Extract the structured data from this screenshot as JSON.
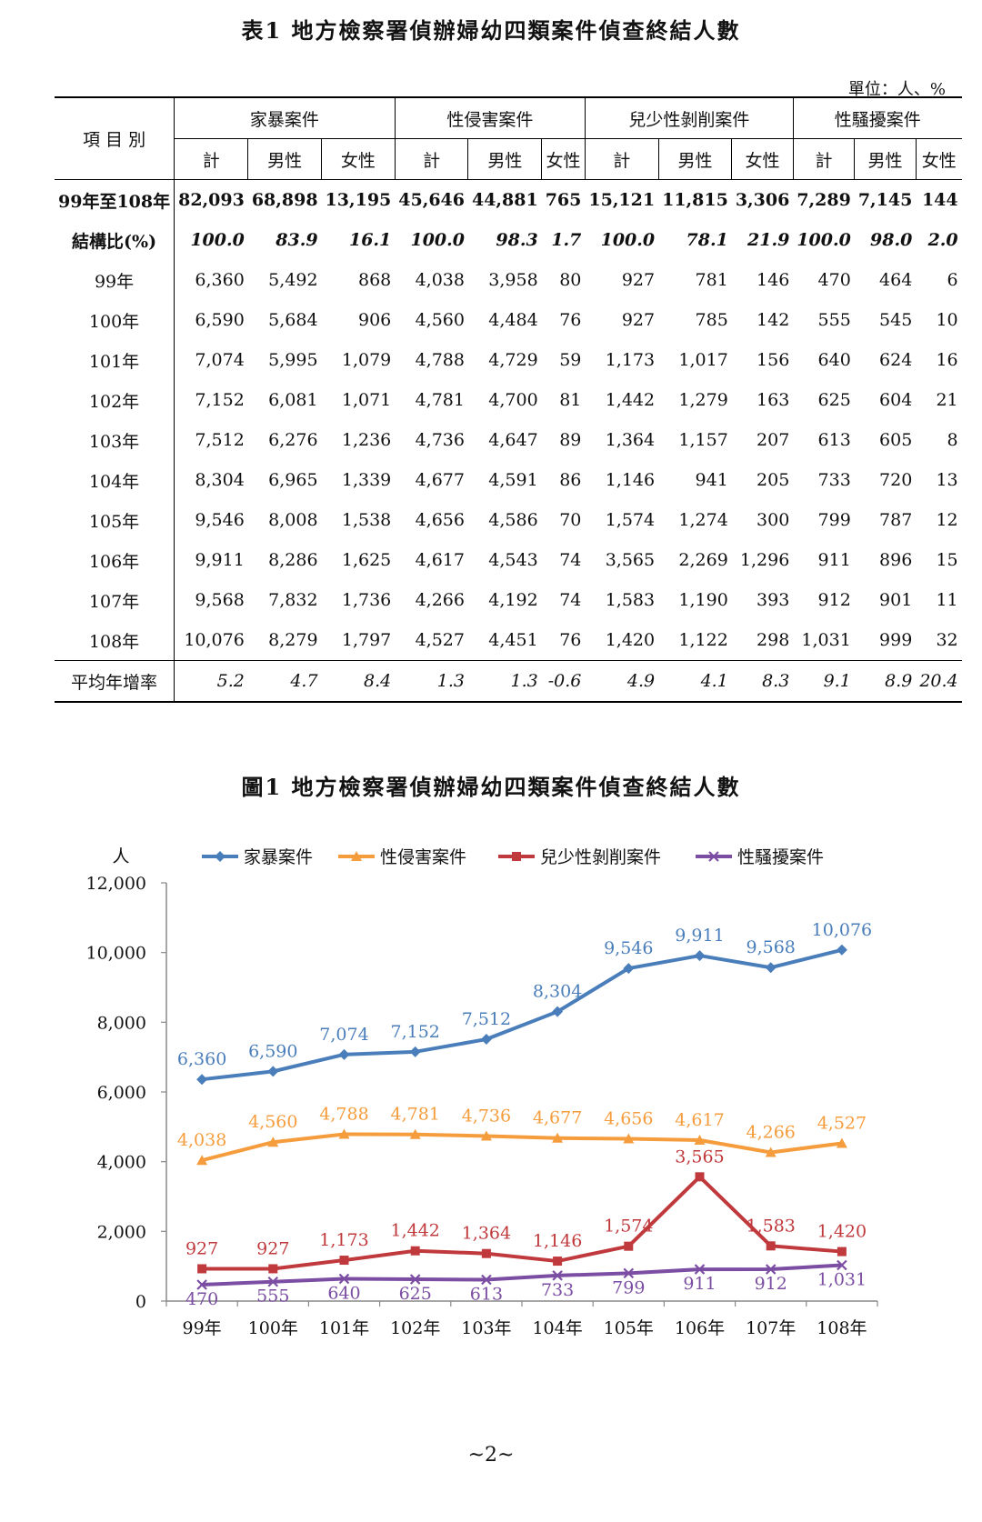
{
  "table": {
    "title": "表1 地方檢察署偵辦婦幼四類案件偵查終結人數",
    "unit": "單位：人、%",
    "row_header": "項 目 別",
    "groups": [
      "家暴案件",
      "性侵害案件",
      "兒少性剝削案件",
      "性騷擾案件"
    ],
    "subheaders": [
      "計",
      "男性",
      "女性",
      "計",
      "男性",
      "女性",
      "計",
      "男性",
      "女性",
      "計",
      "男性",
      "女性"
    ],
    "rows": [
      {
        "label": "99年至108年",
        "values": [
          "82,093",
          "68,898",
          "13,195",
          "45,646",
          "44,881",
          "765",
          "15,121",
          "11,815",
          "3,306",
          "7,289",
          "7,145",
          "144"
        ]
      },
      {
        "label": "結構比(%)",
        "values": [
          "100.0",
          "83.9",
          "16.1",
          "100.0",
          "98.3",
          "1.7",
          "100.0",
          "78.1",
          "21.9",
          "100.0",
          "98.0",
          "2.0"
        ]
      },
      {
        "label": "99年",
        "values": [
          "6,360",
          "5,492",
          "868",
          "4,038",
          "3,958",
          "80",
          "927",
          "781",
          "146",
          "470",
          "464",
          "6"
        ]
      },
      {
        "label": "100年",
        "values": [
          "6,590",
          "5,684",
          "906",
          "4,560",
          "4,484",
          "76",
          "927",
          "785",
          "142",
          "555",
          "545",
          "10"
        ]
      },
      {
        "label": "101年",
        "values": [
          "7,074",
          "5,995",
          "1,079",
          "4,788",
          "4,729",
          "59",
          "1,173",
          "1,017",
          "156",
          "640",
          "624",
          "16"
        ]
      },
      {
        "label": "102年",
        "values": [
          "7,152",
          "6,081",
          "1,071",
          "4,781",
          "4,700",
          "81",
          "1,442",
          "1,279",
          "163",
          "625",
          "604",
          "21"
        ]
      },
      {
        "label": "103年",
        "values": [
          "7,512",
          "6,276",
          "1,236",
          "4,736",
          "4,647",
          "89",
          "1,364",
          "1,157",
          "207",
          "613",
          "605",
          "8"
        ]
      },
      {
        "label": "104年",
        "values": [
          "8,304",
          "6,965",
          "1,339",
          "4,677",
          "4,591",
          "86",
          "1,146",
          "941",
          "205",
          "733",
          "720",
          "13"
        ]
      },
      {
        "label": "105年",
        "values": [
          "9,546",
          "8,008",
          "1,538",
          "4,656",
          "4,586",
          "70",
          "1,574",
          "1,274",
          "300",
          "799",
          "787",
          "12"
        ]
      },
      {
        "label": "106年",
        "values": [
          "9,911",
          "8,286",
          "1,625",
          "4,617",
          "4,543",
          "74",
          "3,565",
          "2,269",
          "1,296",
          "911",
          "896",
          "15"
        ]
      },
      {
        "label": "107年",
        "values": [
          "9,568",
          "7,832",
          "1,736",
          "4,266",
          "4,192",
          "74",
          "1,583",
          "1,190",
          "393",
          "912",
          "901",
          "11"
        ]
      },
      {
        "label": "108年",
        "values": [
          "10,076",
          "8,279",
          "1,797",
          "4,527",
          "4,451",
          "76",
          "1,420",
          "1,122",
          "298",
          "1,031",
          "999",
          "32"
        ]
      },
      {
        "label": "平均年增率",
        "values": [
          "5.2",
          "4.7",
          "8.4",
          "1.3",
          "1.3",
          "-0.6",
          "4.9",
          "4.1",
          "8.3",
          "9.1",
          "8.9",
          "20.4"
        ]
      }
    ]
  },
  "chart_data": {
    "type": "line",
    "title": "圖1 地方檢察署偵辦婦幼四類案件偵查終結人數",
    "ylabel": "人",
    "xlabel": "",
    "categories": [
      "99年",
      "100年",
      "101年",
      "102年",
      "103年",
      "104年",
      "105年",
      "106年",
      "107年",
      "108年"
    ],
    "ylim": [
      0,
      12000
    ],
    "yticks": [
      0,
      2000,
      4000,
      6000,
      8000,
      10000,
      12000
    ],
    "ytick_labels": [
      "0",
      "2,000",
      "4,000",
      "6,000",
      "8,000",
      "10,000",
      "12,000"
    ],
    "legend_position": "top",
    "grid": false,
    "series": [
      {
        "name": "家暴案件",
        "color": "#4a7ebb",
        "marker": "diamond",
        "values": [
          6360,
          6590,
          7074,
          7152,
          7512,
          8304,
          9546,
          9911,
          9568,
          10076
        ],
        "labels": [
          "6,360",
          "6,590",
          "7,074",
          "7,152",
          "7,512",
          "8,304",
          "9,546",
          "9,911",
          "9,568",
          "10,076"
        ]
      },
      {
        "name": "性侵害案件",
        "color": "#f59d3d",
        "marker": "triangle",
        "values": [
          4038,
          4560,
          4788,
          4781,
          4736,
          4677,
          4656,
          4617,
          4266,
          4527
        ],
        "labels": [
          "4,038",
          "4,560",
          "4,788",
          "4,781",
          "4,736",
          "4,677",
          "4,656",
          "4,617",
          "4,266",
          "4,527"
        ]
      },
      {
        "name": "兒少性剝削案件",
        "color": "#c0393c",
        "marker": "square",
        "values": [
          927,
          927,
          1173,
          1442,
          1364,
          1146,
          1574,
          3565,
          1583,
          1420
        ],
        "labels": [
          "927",
          "927",
          "1,173",
          "1,442",
          "1,364",
          "1,146",
          "1,574",
          "3,565",
          "1,583",
          "1,420"
        ]
      },
      {
        "name": "性騷擾案件",
        "color": "#7b4ea3",
        "marker": "x",
        "values": [
          470,
          555,
          640,
          625,
          613,
          733,
          799,
          911,
          912,
          1031
        ],
        "labels": [
          "470",
          "555",
          "640",
          "625",
          "613",
          "733",
          "799",
          "911",
          "912",
          "1,031"
        ]
      }
    ]
  },
  "page_number": "~2~"
}
